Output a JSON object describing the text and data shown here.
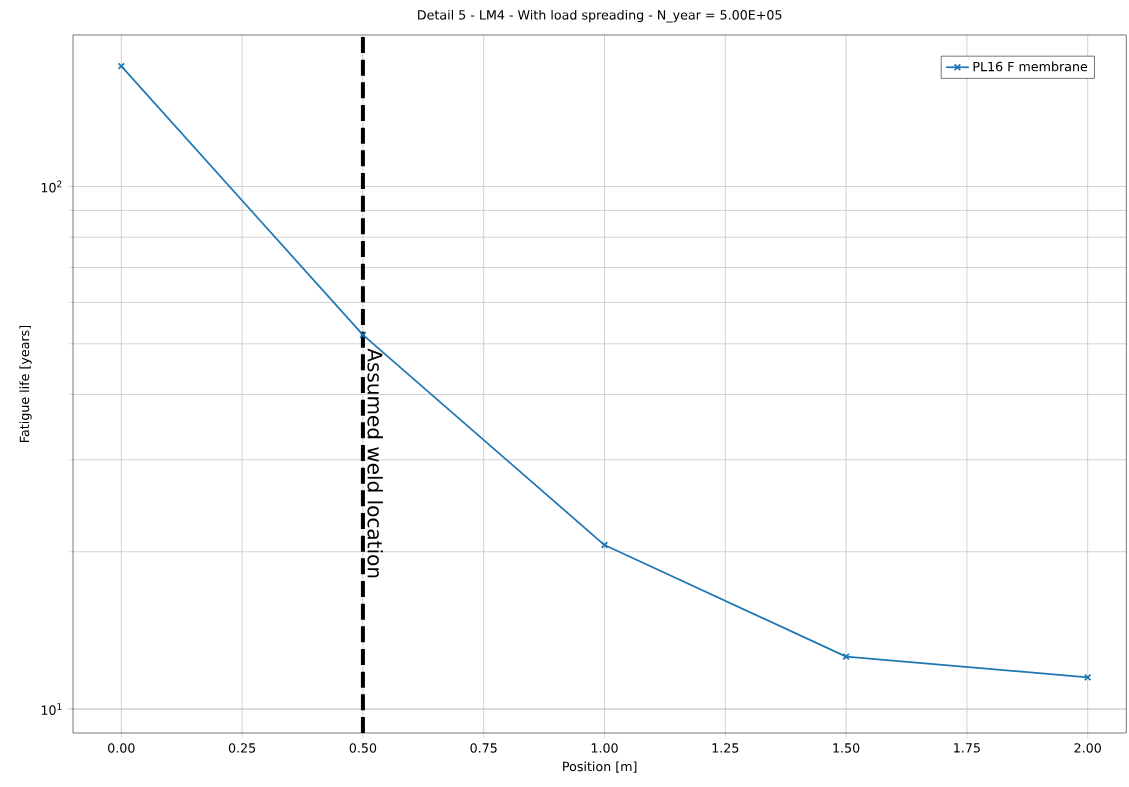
{
  "chart_data": {
    "type": "line",
    "title": "Detail 5 - LM4 - With load spreading - N_year = 5.00E+05",
    "xlabel": "Position [m]",
    "ylabel": "Fatigue life [years]",
    "x": [
      0.0,
      0.5,
      1.0,
      1.5,
      2.0
    ],
    "series": [
      {
        "name": "PL16 F membrane",
        "color": "#1f77b4",
        "values": [
          170,
          52,
          20.6,
          12.6,
          11.5
        ]
      }
    ],
    "xlim": [
      -0.1,
      2.08
    ],
    "ylim": [
      9.0,
      195
    ],
    "xticks": [
      {
        "value": 0,
        "label": "0.00"
      },
      {
        "value": 0.25,
        "label": "0.25"
      },
      {
        "value": 0.5,
        "label": "0.50"
      },
      {
        "value": 0.75,
        "label": "0.75"
      },
      {
        "value": 1.0,
        "label": "1.00"
      },
      {
        "value": 1.25,
        "label": "1.25"
      },
      {
        "value": 1.5,
        "label": "1.50"
      },
      {
        "value": 1.75,
        "label": "1.75"
      },
      {
        "value": 2.0,
        "label": "2.00"
      }
    ],
    "yticks": [
      {
        "value": 10,
        "label": "10$^{1}$"
      },
      {
        "value": 100,
        "label": "10$^{2}$"
      }
    ],
    "log": "y",
    "grid": true,
    "legend": "top right",
    "marker": "cross",
    "line_style": "solid",
    "ref_lines": [
      {
        "axis": "x",
        "value": 0.5,
        "label": "Assumed weld location",
        "color": "#000000",
        "line_style": "dashed"
      }
    ]
  }
}
